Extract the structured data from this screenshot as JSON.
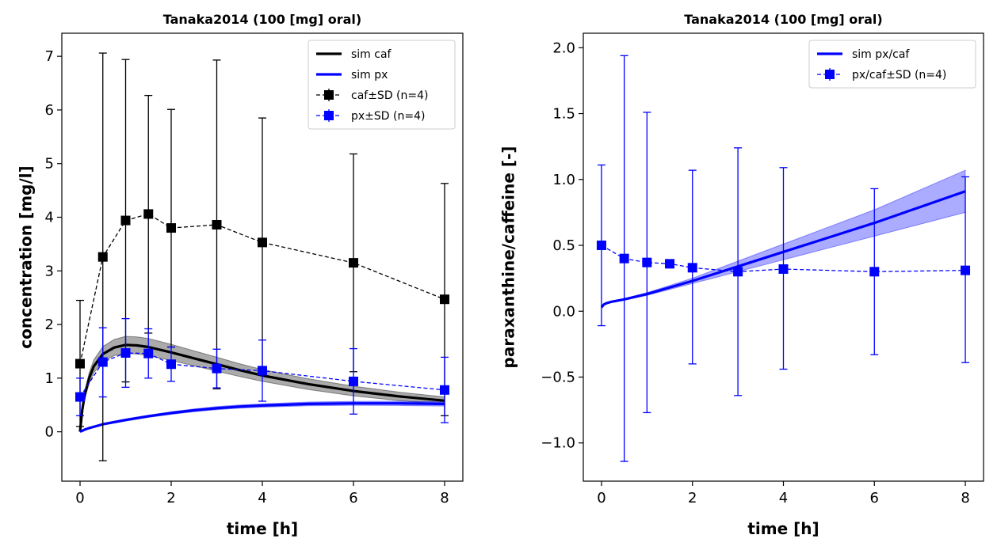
{
  "chart_data": [
    {
      "type": "line",
      "title": "Tanaka2014 (100 [mg] oral)",
      "xlabel": "time [h]",
      "ylabel": "concentration [mg/l]",
      "xlim": [
        -0.4,
        8.4
      ],
      "ylim": [
        -0.92,
        7.43
      ],
      "xticks": [
        0,
        2,
        4,
        6,
        8
      ],
      "yticks": [
        0,
        1,
        2,
        3,
        4,
        5,
        6,
        7
      ],
      "grid": false,
      "legend_position": "top-right",
      "legend": [
        "sim caf",
        "sim px",
        "caf±SD (n=4)",
        "px±SD (n=4)"
      ],
      "sim_series": [
        {
          "name": "sim caf",
          "color": "#000000",
          "x": [
            0,
            0.05,
            0.1,
            0.2,
            0.3,
            0.5,
            0.75,
            1,
            1.25,
            1.5,
            2,
            2.5,
            3,
            3.5,
            4,
            5,
            6,
            7,
            8
          ],
          "values": [
            0,
            0.42,
            0.68,
            1.0,
            1.22,
            1.45,
            1.57,
            1.62,
            1.61,
            1.58,
            1.48,
            1.37,
            1.26,
            1.15,
            1.05,
            0.89,
            0.76,
            0.66,
            0.58
          ],
          "band_halfwidth": [
            0,
            0.04,
            0.07,
            0.1,
            0.12,
            0.14,
            0.15,
            0.16,
            0.16,
            0.16,
            0.15,
            0.14,
            0.13,
            0.12,
            0.11,
            0.1,
            0.09,
            0.08,
            0.07
          ]
        },
        {
          "name": "sim px",
          "color": "#0000ff",
          "x": [
            0,
            0.05,
            0.1,
            0.2,
            0.5,
            1,
            1.5,
            2,
            2.5,
            3,
            3.5,
            4,
            5,
            6,
            7,
            8
          ],
          "values": [
            0,
            0.02,
            0.04,
            0.07,
            0.14,
            0.22,
            0.29,
            0.35,
            0.4,
            0.44,
            0.47,
            0.49,
            0.52,
            0.53,
            0.53,
            0.52
          ],
          "band_halfwidth": [
            0,
            0.005,
            0.01,
            0.01,
            0.015,
            0.02,
            0.02,
            0.025,
            0.025,
            0.03,
            0.03,
            0.03,
            0.035,
            0.035,
            0.04,
            0.04
          ]
        }
      ],
      "data_series": [
        {
          "name": "caf±SD (n=4)",
          "color": "#000000",
          "x": [
            0,
            0.5,
            1,
            1.5,
            2,
            3,
            4,
            6,
            8
          ],
          "values": [
            1.27,
            3.26,
            3.94,
            4.06,
            3.8,
            3.86,
            3.53,
            3.15,
            2.47
          ],
          "err_low": [
            0.1,
            -0.54,
            0.93,
            1.84,
            1.58,
            0.8,
            1.2,
            1.12,
            0.3
          ],
          "err_high": [
            2.45,
            7.06,
            6.94,
            6.27,
            6.01,
            6.93,
            5.85,
            5.18,
            4.63
          ]
        },
        {
          "name": "px±SD (n=4)",
          "color": "#0000ff",
          "x": [
            0,
            0.5,
            1,
            1.5,
            2,
            3,
            4,
            6,
            8
          ],
          "values": [
            0.65,
            1.3,
            1.47,
            1.46,
            1.26,
            1.18,
            1.14,
            0.94,
            0.78
          ],
          "err_low": [
            0.3,
            0.65,
            0.83,
            1.0,
            0.94,
            0.82,
            0.57,
            0.33,
            0.17
          ],
          "err_high": [
            1.0,
            1.94,
            2.11,
            1.92,
            1.58,
            1.54,
            1.71,
            1.55,
            1.39
          ]
        }
      ]
    },
    {
      "type": "line",
      "title": "Tanaka2014 (100 [mg] oral)",
      "xlabel": "time [h]",
      "ylabel": "paraxanthine/caffeine [-]",
      "xlim": [
        -0.4,
        8.4
      ],
      "ylim": [
        -1.29,
        2.11
      ],
      "xticks": [
        0,
        2,
        4,
        6,
        8
      ],
      "yticks": [
        -1.0,
        -0.5,
        0.0,
        0.5,
        1.0,
        1.5,
        2.0
      ],
      "ytick_labels": [
        "−1.0",
        "−0.5",
        "0.0",
        "0.5",
        "1.0",
        "1.5",
        "2.0"
      ],
      "grid": false,
      "legend_position": "top-right",
      "legend": [
        "sim px/caf",
        "px/caf±SD (n=4)"
      ],
      "sim_series": [
        {
          "name": "sim px/caf",
          "color": "#0000ff",
          "x": [
            0,
            0.05,
            0.1,
            0.2,
            0.5,
            1,
            2,
            3,
            4,
            5,
            6,
            7,
            8
          ],
          "values": [
            0.03,
            0.05,
            0.06,
            0.07,
            0.09,
            0.13,
            0.23,
            0.34,
            0.45,
            0.56,
            0.67,
            0.79,
            0.91
          ],
          "band_halfwidth": [
            0.005,
            0.005,
            0.005,
            0.005,
            0.006,
            0.01,
            0.02,
            0.04,
            0.06,
            0.08,
            0.1,
            0.13,
            0.16
          ]
        }
      ],
      "data_series": [
        {
          "name": "px/caf±SD (n=4)",
          "color": "#0000ff",
          "x": [
            0,
            0.5,
            1,
            1.5,
            2,
            3,
            4,
            6,
            8
          ],
          "values": [
            0.5,
            0.4,
            0.37,
            0.36,
            0.33,
            0.3,
            0.32,
            0.3,
            0.31
          ],
          "err_low": [
            -0.11,
            -1.14,
            -0.77,
            null,
            -0.4,
            -0.64,
            -0.44,
            -0.33,
            -0.39
          ],
          "err_high": [
            1.11,
            1.94,
            1.51,
            null,
            1.07,
            1.24,
            1.09,
            0.93,
            1.02
          ]
        }
      ]
    }
  ]
}
